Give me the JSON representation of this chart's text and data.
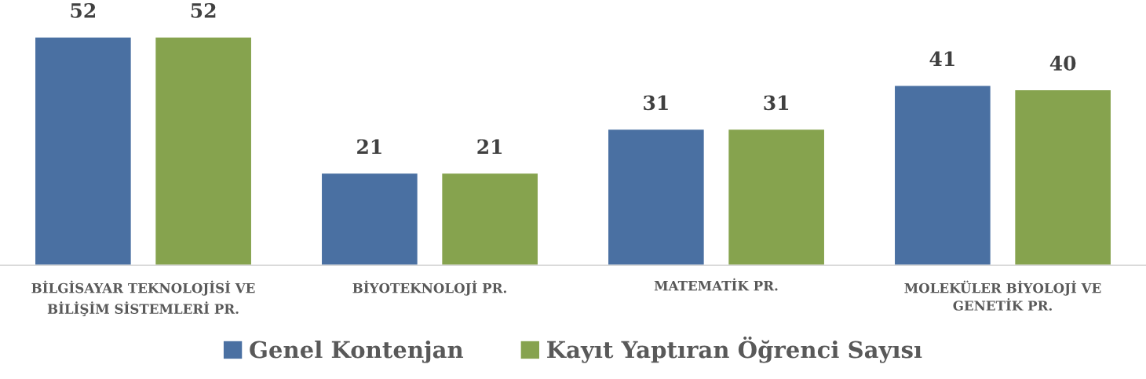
{
  "chart_data": {
    "type": "bar",
    "categories": [
      "BİLGİSAYAR TEKNOLOJİSİ VE BİLİŞİM SİSTEMLERİ PR.",
      "BİYOTEKNOLOJİ PR.",
      "MATEMATİK PR.",
      "MOLEKÜLER BİYOLOJİ VE GENETİK PR."
    ],
    "series": [
      {
        "name": "Genel Kontenjan",
        "color": "#4a70a2",
        "values": [
          52,
          21,
          31,
          41
        ]
      },
      {
        "name": "Kayıt Yaptıran Öğrenci Sayısı",
        "color": "#86a34e",
        "values": [
          52,
          21,
          31,
          40
        ]
      }
    ],
    "data_labels": true,
    "legend": "bottom",
    "grid": false,
    "tick_labels": "x"
  }
}
